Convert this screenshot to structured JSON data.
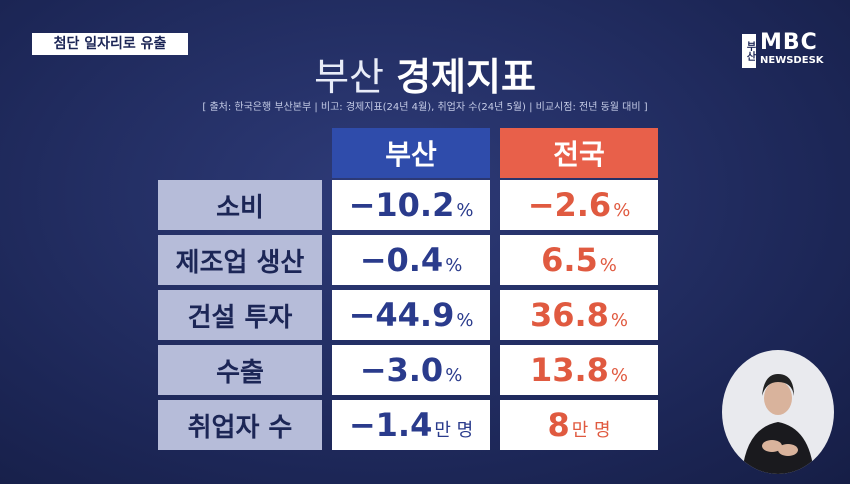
{
  "tag": "첨단 일자리로 유출",
  "logo": {
    "main": "MBC",
    "sub": "NEWSDESK",
    "region": "부산"
  },
  "title": [
    "부산",
    "경제지표"
  ],
  "source": "[ 출처: 한국은행 부산본부 | 비고: 경제지표(24년 4월), 취업자 수(24년 5월) | 비교시점: 전년 동월 대비 ]",
  "table": {
    "header": [
      "부산",
      "전국"
    ],
    "rows": [
      {
        "label": "소비",
        "busan": "−10.2",
        "busan_unit": "%",
        "national": "−2.6",
        "national_unit": "%"
      },
      {
        "label": "제조업 생산",
        "busan": "−0.4",
        "busan_unit": "%",
        "national": "6.5",
        "national_unit": "%"
      },
      {
        "label": "건설 투자",
        "busan": "−44.9",
        "busan_unit": "%",
        "national": "36.8",
        "national_unit": "%"
      },
      {
        "label": "수출",
        "busan": "−3.0",
        "busan_unit": "%",
        "national": "13.8",
        "national_unit": "%"
      },
      {
        "label": "취업자 수",
        "busan": "−1.4",
        "busan_unit": "만 명",
        "national": "8",
        "national_unit": "만 명"
      }
    ]
  }
}
